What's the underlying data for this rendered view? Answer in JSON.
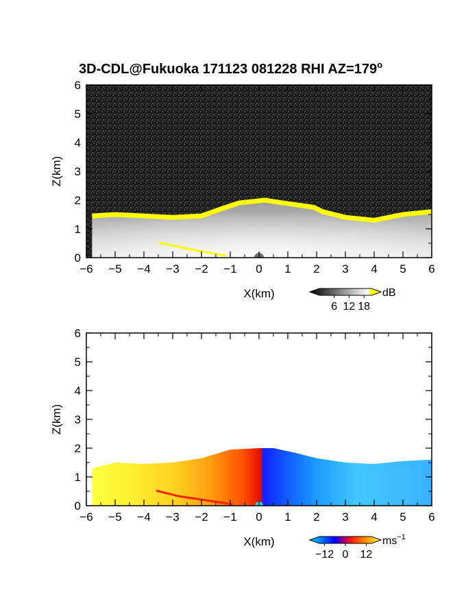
{
  "chart_data": [
    {
      "type": "heatmap",
      "title": "3D-CDL@Fukuoka 171123 081228 RHI AZ=179",
      "title_superscript": "o",
      "xlabel": "X(km)",
      "ylabel": "Z(km)",
      "xlim": [
        -6,
        6
      ],
      "ylim": [
        0,
        6
      ],
      "x_ticks": [
        -6,
        -5,
        -4,
        -3,
        -2,
        -1,
        0,
        1,
        2,
        3,
        4,
        5,
        6
      ],
      "y_ticks": [
        0,
        1,
        2,
        3,
        4,
        5,
        6
      ],
      "quantity": "backscatter intensity",
      "colorbar": {
        "unit": "dB",
        "ticks": [
          6,
          12,
          18
        ],
        "range": [
          0,
          21
        ],
        "colors": [
          "#000000",
          "#ffffff",
          "#ffff00"
        ]
      },
      "echo_top_km": [
        {
          "x": -5.8,
          "z": 1.45
        },
        {
          "x": -5.0,
          "z": 1.5
        },
        {
          "x": -4.0,
          "z": 1.45
        },
        {
          "x": -3.0,
          "z": 1.4
        },
        {
          "x": -2.0,
          "z": 1.45
        },
        {
          "x": -1.3,
          "z": 1.7
        },
        {
          "x": -0.7,
          "z": 1.9
        },
        {
          "x": 0.2,
          "z": 2.0
        },
        {
          "x": 0.5,
          "z": 1.95
        },
        {
          "x": 1.2,
          "z": 1.85
        },
        {
          "x": 1.9,
          "z": 1.75
        },
        {
          "x": 2.2,
          "z": 1.6
        },
        {
          "x": 3.0,
          "z": 1.4
        },
        {
          "x": 4.0,
          "z": 1.3
        },
        {
          "x": 5.0,
          "z": 1.5
        },
        {
          "x": 6.0,
          "z": 1.6
        }
      ]
    },
    {
      "type": "heatmap",
      "xlabel": "X(km)",
      "ylabel": "Z(km)",
      "xlim": [
        -6,
        6
      ],
      "ylim": [
        0,
        6
      ],
      "x_ticks": [
        -6,
        -5,
        -4,
        -3,
        -2,
        -1,
        0,
        1,
        2,
        3,
        4,
        5,
        6
      ],
      "y_ticks": [
        0,
        1,
        2,
        3,
        4,
        5,
        6
      ],
      "quantity": "Doppler radial velocity",
      "colorbar": {
        "unit": "ms",
        "unit_superscript": "−1",
        "ticks": [
          "−12",
          "0",
          "12"
        ],
        "range": [
          -15,
          15
        ],
        "colors": [
          "#00e0ff",
          "#0000ff",
          "#ff0000",
          "#ffff00"
        ]
      },
      "echo_top_km": [
        {
          "x": -5.8,
          "z": 1.3
        },
        {
          "x": -5.0,
          "z": 1.5
        },
        {
          "x": -4.0,
          "z": 1.45
        },
        {
          "x": -3.0,
          "z": 1.5
        },
        {
          "x": -2.0,
          "z": 1.65
        },
        {
          "x": -1.0,
          "z": 1.95
        },
        {
          "x": 0.0,
          "z": 2.0
        },
        {
          "x": 0.5,
          "z": 2.0
        },
        {
          "x": 1.2,
          "z": 1.85
        },
        {
          "x": 2.0,
          "z": 1.65
        },
        {
          "x": 3.0,
          "z": 1.5
        },
        {
          "x": 4.0,
          "z": 1.45
        },
        {
          "x": 5.0,
          "z": 1.55
        },
        {
          "x": 6.0,
          "z": 1.6
        }
      ],
      "velocity_ms": [
        {
          "x": -5.5,
          "v": 13
        },
        {
          "x": -4.0,
          "v": 12
        },
        {
          "x": -3.0,
          "v": 9
        },
        {
          "x": -2.0,
          "v": 5
        },
        {
          "x": -1.0,
          "v": 2
        },
        {
          "x": -0.1,
          "v": 0
        },
        {
          "x": 0.2,
          "v": -2
        },
        {
          "x": 1.0,
          "v": -6
        },
        {
          "x": 2.0,
          "v": -10
        },
        {
          "x": 3.0,
          "v": -11
        },
        {
          "x": 4.5,
          "v": -12
        },
        {
          "x": 6.0,
          "v": -12
        }
      ]
    }
  ]
}
